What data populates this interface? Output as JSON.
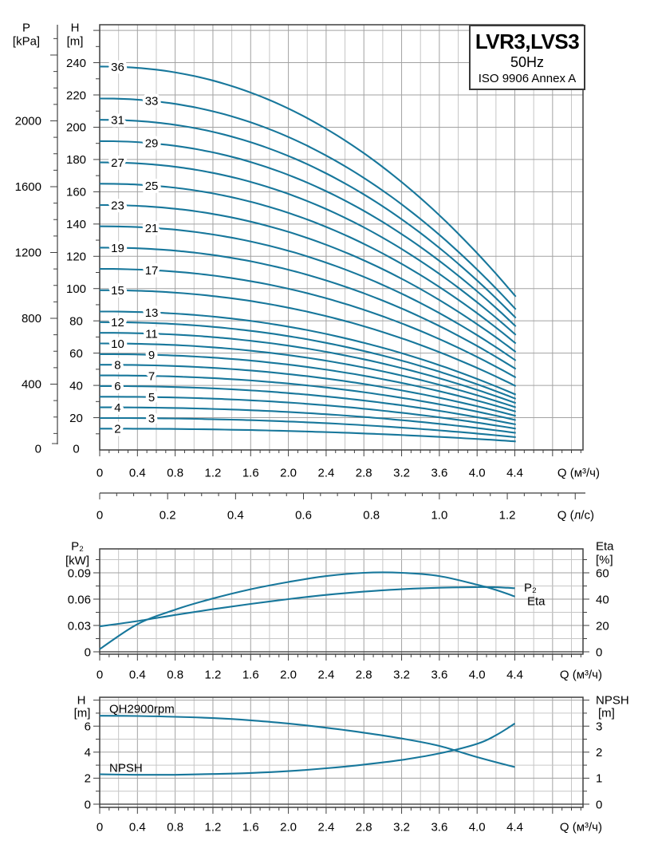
{
  "title_box": {
    "model": "LVR3,LVS3",
    "frequency": "50Hz",
    "standard": "ISO 9906 Annex A"
  },
  "colors": {
    "curve": "#17779b",
    "grid_major": "#a2a2a2",
    "grid_minor": "#c6c6c6",
    "frame": "#3f3f3f",
    "text": "#000000"
  },
  "chart_data": [
    {
      "type": "line",
      "name": "qh-curve-family",
      "xlabel": "Q (м³/ч)",
      "x2label": "Q (л/с)",
      "y_axis_primary": {
        "header": "P",
        "unit": "[kPa]",
        "ticks": [
          "0",
          "400",
          "800",
          "1200",
          "1600",
          "2000"
        ],
        "tick_values": [
          0,
          400,
          800,
          1200,
          1600,
          2000
        ],
        "minor_step": 100,
        "max": 2500,
        "kpa_per_m": 9.80665
      },
      "y_axis_secondary": {
        "header": "H",
        "unit": "[m]",
        "ticks": [
          "0",
          "20",
          "40",
          "60",
          "80",
          "100",
          "120",
          "140",
          "160",
          "180",
          "200",
          "220",
          "240"
        ],
        "tick_values": [
          0,
          20,
          40,
          60,
          80,
          100,
          120,
          140,
          160,
          180,
          200,
          220,
          240
        ],
        "minor_step": 10,
        "grid_step": 20,
        "grid_max": 260
      },
      "x_axis": {
        "ticks": [
          "0",
          "0.4",
          "0.8",
          "1.2",
          "1.6",
          "2.0",
          "2.4",
          "2.8",
          "3.2",
          "3.6",
          "4.0",
          "4.4"
        ],
        "tick_values": [
          0,
          0.4,
          0.8,
          1.2,
          1.6,
          2.0,
          2.4,
          2.8,
          3.2,
          3.6,
          4.0,
          4.4
        ],
        "minor_step": 0.1,
        "grid_step": 0.2,
        "max_frame": 5.12
      },
      "x_axis2": {
        "ticks": [
          "0",
          "0.2",
          "0.4",
          "0.6",
          "0.8",
          "1.0",
          "1.2"
        ],
        "tick_values": [
          0,
          0.2,
          0.4,
          0.6,
          0.8,
          1.0,
          1.2
        ],
        "minor_step": 0.05,
        "tick_max": 1.4,
        "m3h_per_ls": 3.6
      },
      "q_end": 4.41,
      "droop_exponent": 2.15,
      "series": [
        {
          "stages": "36",
          "h0": 237.6,
          "h_end": 95.0,
          "label_q": 0.19
        },
        {
          "stages": "33",
          "h0": 217.8,
          "h_end": 87.1,
          "label_q": 0.55
        },
        {
          "stages": "31",
          "h0": 204.6,
          "h_end": 81.8,
          "label_q": 0.19
        },
        {
          "stages": "29",
          "h0": 191.4,
          "h_end": 76.6,
          "label_q": 0.55
        },
        {
          "stages": "27",
          "h0": 178.2,
          "h_end": 71.3,
          "label_q": 0.19
        },
        {
          "stages": "25",
          "h0": 165.0,
          "h_end": 66.0,
          "label_q": 0.55
        },
        {
          "stages": "23",
          "h0": 151.8,
          "h_end": 60.7,
          "label_q": 0.19
        },
        {
          "stages": "21",
          "h0": 138.6,
          "h_end": 55.4,
          "label_q": 0.55
        },
        {
          "stages": "19",
          "h0": 125.4,
          "h_end": 50.2,
          "label_q": 0.19
        },
        {
          "stages": "17",
          "h0": 112.2,
          "h_end": 44.9,
          "label_q": 0.55
        },
        {
          "stages": "15",
          "h0": 99.0,
          "h_end": 39.6,
          "label_q": 0.19
        },
        {
          "stages": "13",
          "h0": 85.8,
          "h_end": 34.3,
          "label_q": 0.55
        },
        {
          "stages": "12",
          "h0": 79.2,
          "h_end": 31.7,
          "label_q": 0.19
        },
        {
          "stages": "11",
          "h0": 72.6,
          "h_end": 29.0,
          "label_q": 0.55
        },
        {
          "stages": "10",
          "h0": 66.0,
          "h_end": 26.4,
          "label_q": 0.19
        },
        {
          "stages": "9",
          "h0": 59.4,
          "h_end": 23.8,
          "label_q": 0.55
        },
        {
          "stages": "8",
          "h0": 52.8,
          "h_end": 21.1,
          "label_q": 0.19
        },
        {
          "stages": "7",
          "h0": 46.2,
          "h_end": 18.5,
          "label_q": 0.55
        },
        {
          "stages": "6",
          "h0": 39.6,
          "h_end": 15.8,
          "label_q": 0.19
        },
        {
          "stages": "5",
          "h0": 33.0,
          "h_end": 13.2,
          "label_q": 0.55
        },
        {
          "stages": "4",
          "h0": 26.4,
          "h_end": 10.6,
          "label_q": 0.19
        },
        {
          "stages": "3",
          "h0": 19.8,
          "h_end": 7.9,
          "label_q": 0.55
        },
        {
          "stages": "2",
          "h0": 13.2,
          "h_end": 5.3,
          "label_q": 0.19
        }
      ]
    },
    {
      "type": "line",
      "name": "power-efficiency",
      "xlabel": "Q (м³/ч)",
      "y_axis_left": {
        "header": "P₂",
        "unit": "[kW]",
        "ticks": [
          "0",
          "0.03",
          "0.06",
          "0.09"
        ],
        "tick_values": [
          0,
          0.03,
          0.06,
          0.09
        ],
        "minor_step": 0.015
      },
      "y_axis_right": {
        "header": "Eta",
        "unit": "[%]",
        "ticks": [
          "0",
          "20",
          "40",
          "60"
        ],
        "tick_values": [
          0,
          20,
          40,
          60
        ],
        "minor_step": 10
      },
      "x_axis": {
        "ticks": [
          "0",
          "0.4",
          "0.8",
          "1.2",
          "1.6",
          "2.0",
          "2.4",
          "2.8",
          "3.2",
          "3.6",
          "4.0",
          "4.4"
        ],
        "tick_values": [
          0,
          0.4,
          0.8,
          1.2,
          1.6,
          2.0,
          2.4,
          2.8,
          3.2,
          3.6,
          4.0,
          4.4
        ],
        "minor_step": 0.1,
        "grid_step": 0.2
      },
      "series": [
        {
          "name": "P₂",
          "axis": "left",
          "points": [
            [
              0,
              0.029
            ],
            [
              0.4,
              0.035
            ],
            [
              0.8,
              0.042
            ],
            [
              1.2,
              0.0485
            ],
            [
              1.6,
              0.0545
            ],
            [
              2.0,
              0.06
            ],
            [
              2.4,
              0.0648
            ],
            [
              2.8,
              0.0685
            ],
            [
              3.2,
              0.0713
            ],
            [
              3.6,
              0.073
            ],
            [
              4.0,
              0.0737
            ],
            [
              4.2,
              0.0735
            ],
            [
              4.4,
              0.0725
            ]
          ]
        },
        {
          "name": "Eta",
          "axis": "right",
          "points": [
            [
              0,
              2
            ],
            [
              0.4,
              21
            ],
            [
              0.8,
              32
            ],
            [
              1.2,
              40.5
            ],
            [
              1.6,
              47.5
            ],
            [
              2.0,
              53
            ],
            [
              2.4,
              57.5
            ],
            [
              2.8,
              60
            ],
            [
              3.2,
              60
            ],
            [
              3.6,
              57.5
            ],
            [
              4.0,
              51
            ],
            [
              4.2,
              47
            ],
            [
              4.4,
              42
            ]
          ]
        }
      ]
    },
    {
      "type": "line",
      "name": "qh-single-stage-npsh",
      "xlabel": "Q (м³/ч)",
      "y_axis_left": {
        "header": "H",
        "unit": "[m]",
        "ticks": [
          "0",
          "2",
          "4",
          "6"
        ],
        "tick_values": [
          0,
          2,
          4,
          6
        ],
        "minor_step": 1,
        "grid_step": 1,
        "grid_max": 8
      },
      "y_axis_right": {
        "header": "NPSH",
        "unit": "[m]",
        "ticks": [
          "0",
          "1",
          "2",
          "3"
        ],
        "tick_values": [
          0,
          1,
          2,
          3
        ],
        "minor_step": 0.5
      },
      "x_axis": {
        "ticks": [
          "0",
          "0.4",
          "0.8",
          "1.2",
          "1.6",
          "2.0",
          "2.4",
          "2.8",
          "3.2",
          "3.6",
          "4.0",
          "4.4"
        ],
        "tick_values": [
          0,
          0.4,
          0.8,
          1.2,
          1.6,
          2.0,
          2.4,
          2.8,
          3.2,
          3.6,
          4.0,
          4.4
        ],
        "minor_step": 0.1,
        "grid_step": 0.2
      },
      "series": [
        {
          "name": "QH2900rpm",
          "axis": "left",
          "points": [
            [
              0,
              6.8
            ],
            [
              0.4,
              6.78
            ],
            [
              0.8,
              6.72
            ],
            [
              1.2,
              6.62
            ],
            [
              1.6,
              6.45
            ],
            [
              2.0,
              6.2
            ],
            [
              2.4,
              5.88
            ],
            [
              2.8,
              5.5
            ],
            [
              3.2,
              5.05
            ],
            [
              3.6,
              4.48
            ],
            [
              4.0,
              3.62
            ],
            [
              4.4,
              2.85
            ]
          ]
        },
        {
          "name": "NPSH",
          "axis": "right",
          "points": [
            [
              0,
              1.15
            ],
            [
              0.4,
              1.13
            ],
            [
              0.8,
              1.13
            ],
            [
              1.2,
              1.16
            ],
            [
              1.6,
              1.2
            ],
            [
              2.0,
              1.27
            ],
            [
              2.4,
              1.38
            ],
            [
              2.8,
              1.52
            ],
            [
              3.2,
              1.7
            ],
            [
              3.6,
              1.95
            ],
            [
              4.0,
              2.32
            ],
            [
              4.2,
              2.65
            ],
            [
              4.4,
              3.1
            ]
          ]
        }
      ]
    }
  ]
}
